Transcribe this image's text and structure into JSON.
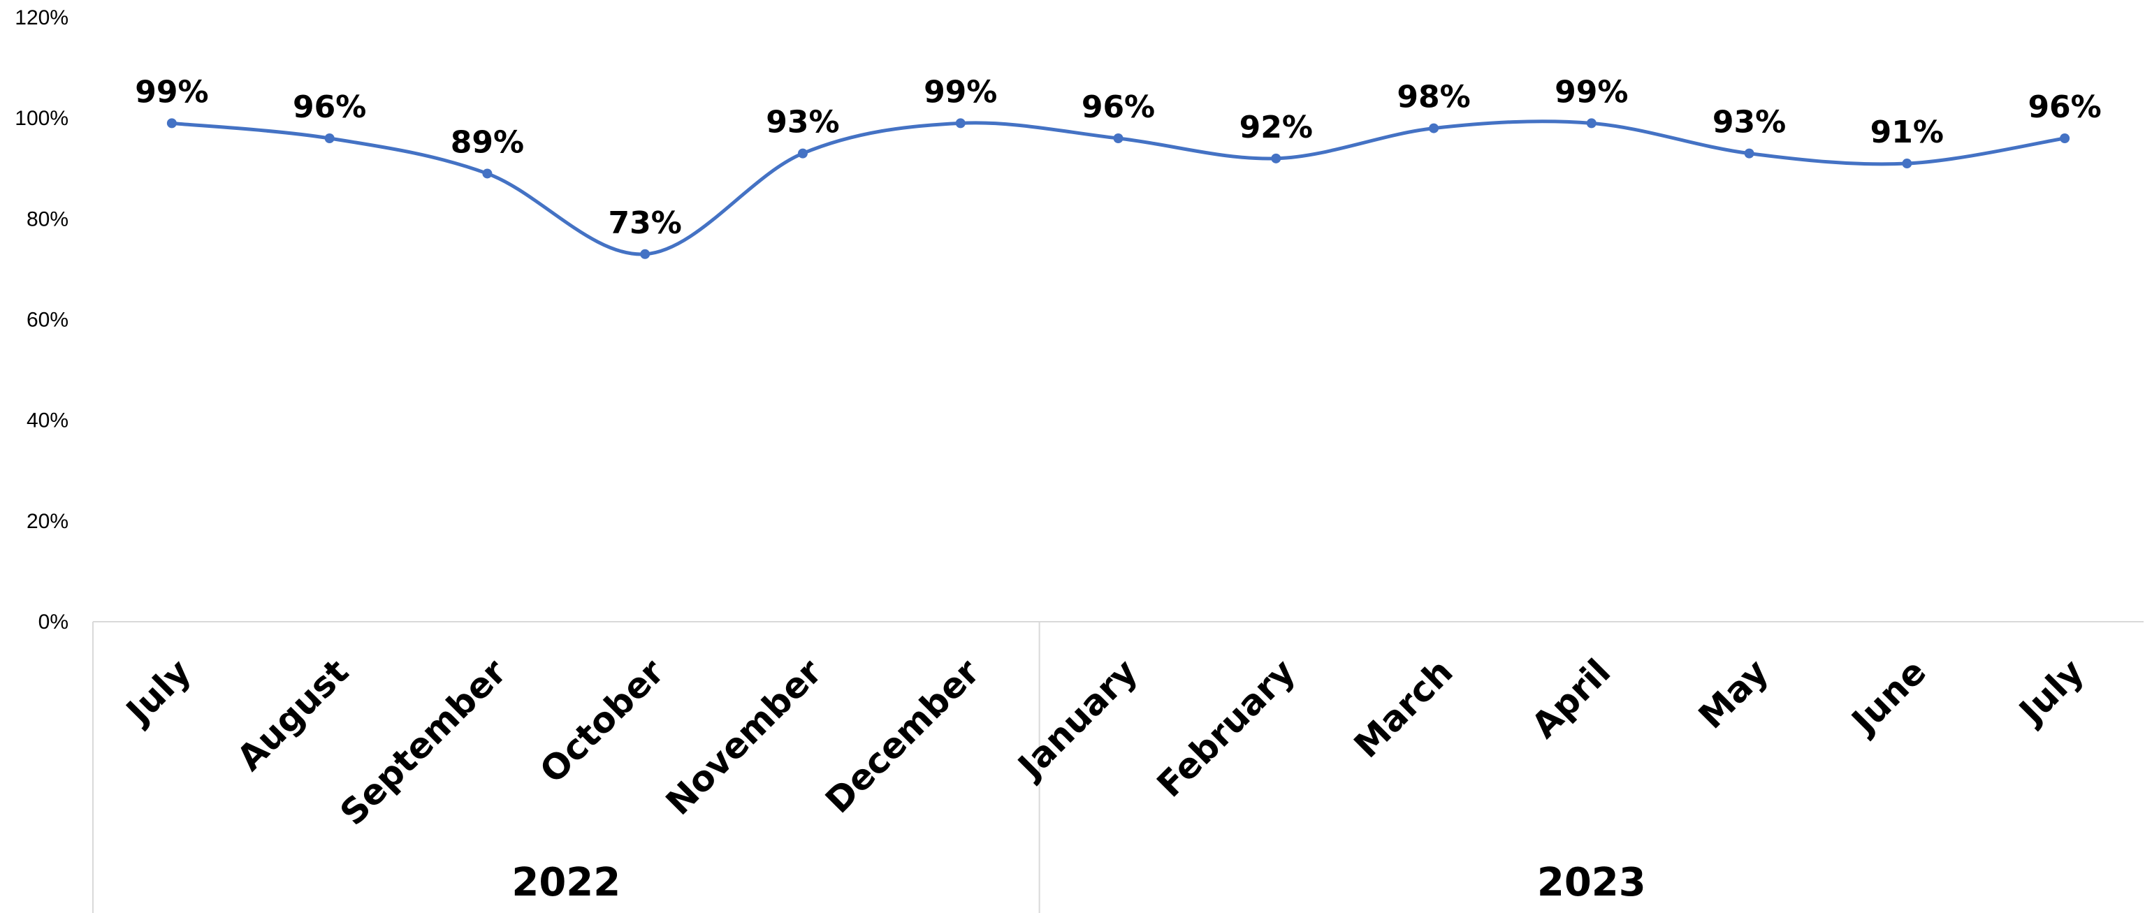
{
  "chart_data": {
    "type": "line",
    "categories": [
      "July",
      "August",
      "September",
      "October",
      "November",
      "December",
      "January",
      "February",
      "March",
      "April",
      "May",
      "June",
      "July"
    ],
    "groups": [
      {
        "label": "2022",
        "start": 0,
        "end": 5
      },
      {
        "label": "2023",
        "start": 6,
        "end": 12
      }
    ],
    "series": [
      {
        "values": [
          99,
          96,
          89,
          73,
          93,
          99,
          96,
          92,
          98,
          99,
          93,
          91,
          96
        ],
        "data_labels": [
          "99%",
          "96%",
          "89%",
          "73%",
          "93%",
          "99%",
          "96%",
          "92%",
          "98%",
          "99%",
          "93%",
          "91%",
          "96%"
        ],
        "color": "#4472C4",
        "smooth": true,
        "markers": true
      }
    ],
    "title": "",
    "xlabel": "",
    "ylabel": "",
    "ylim": [
      0,
      120
    ],
    "yticks": [
      0,
      20,
      40,
      60,
      80,
      100,
      120
    ],
    "ytick_labels": [
      "0%",
      "20%",
      "40%",
      "60%",
      "80%",
      "100%",
      "120%"
    ],
    "grid": false,
    "legend": "none",
    "axis_color": "#D9D9D9"
  }
}
